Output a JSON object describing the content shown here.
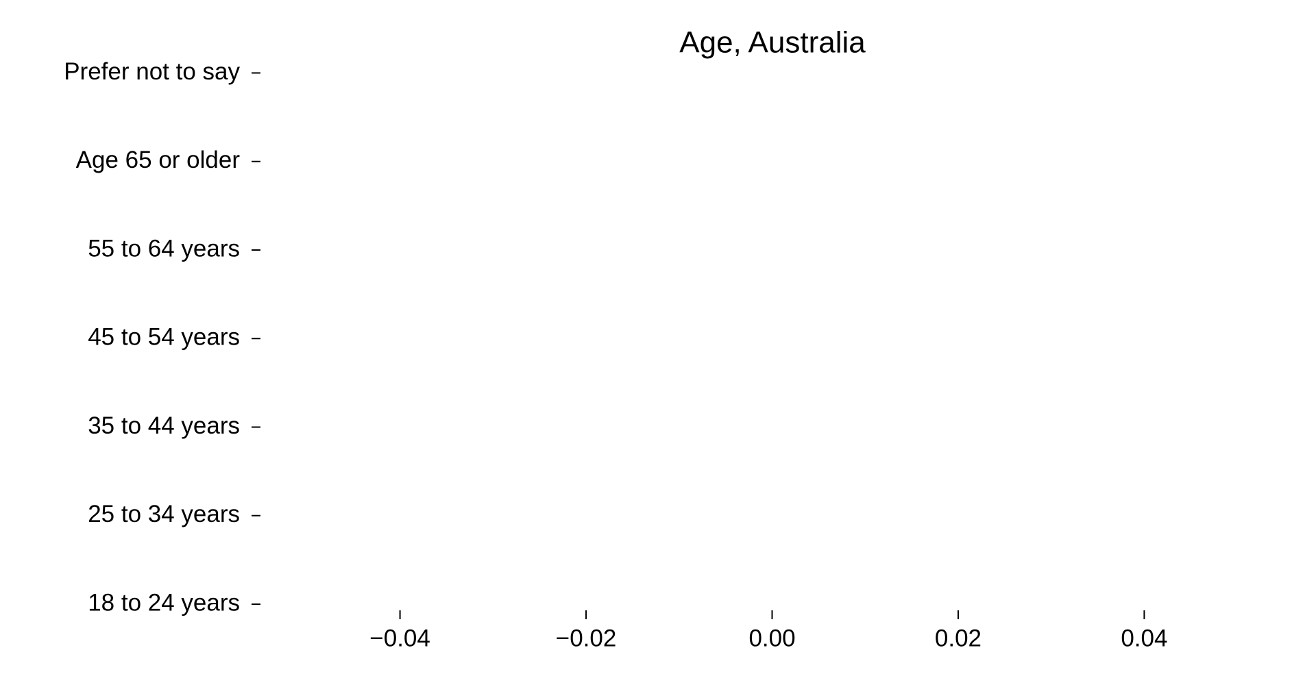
{
  "chart_data": {
    "type": "barh",
    "title": "Age, Australia",
    "categories": [
      "18 to 24 years",
      "25 to 34 years",
      "35 to 44 years",
      "45 to 54 years",
      "55 to 64 years",
      "Age 65 or older",
      "Prefer not to say"
    ],
    "xlim": [
      -0.055,
      0.055
    ],
    "xticks": [
      {
        "value": -0.04,
        "label": "−0.04"
      },
      {
        "value": -0.02,
        "label": "−0.02"
      },
      {
        "value": 0,
        "label": "0.00"
      },
      0.02,
      0.04
    ]
  }
}
